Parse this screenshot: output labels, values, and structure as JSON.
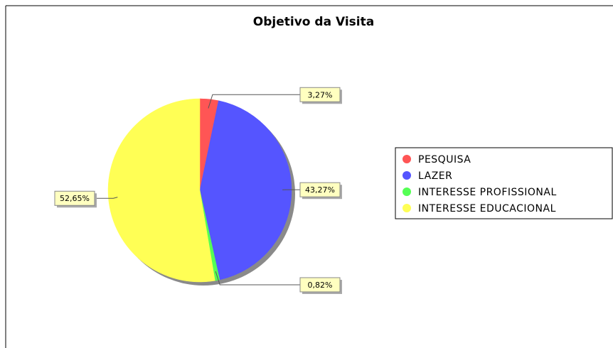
{
  "chart_data": {
    "type": "pie",
    "title": "Objetivo da Visita",
    "categories": [
      "PESQUISA",
      "LAZER",
      "INTERESSE PROFISSIONAL",
      "INTERESSE EDUCACIONAL"
    ],
    "values": [
      3.27,
      43.27,
      0.82,
      52.65
    ],
    "value_labels": [
      "3,27%",
      "43,27%",
      "0,82%",
      "52,65%"
    ],
    "colors": [
      "#ff5555",
      "#5555ff",
      "#55ff55",
      "#ffff55"
    ],
    "legend": "right"
  }
}
